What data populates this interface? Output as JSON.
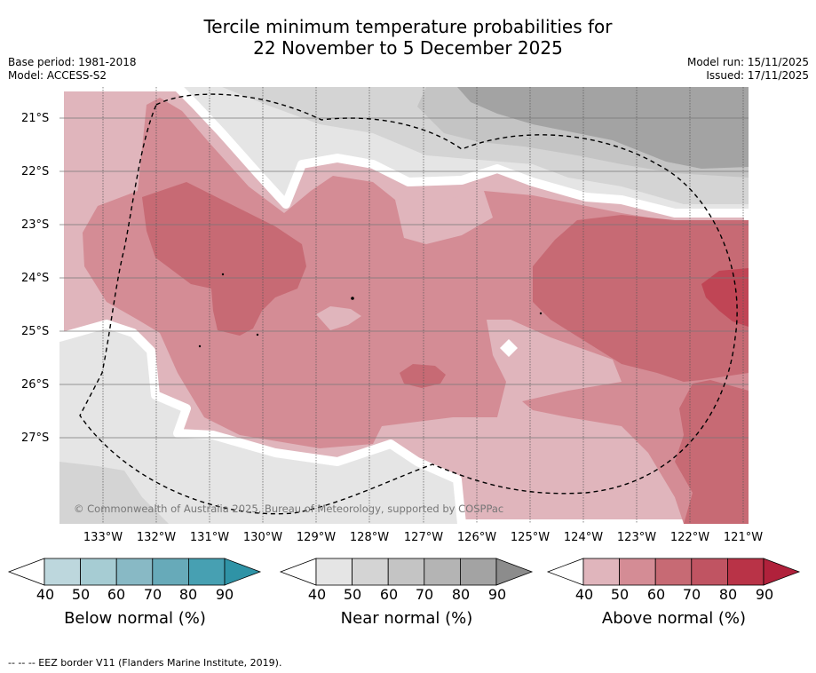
{
  "title_line1": "Tercile minimum temperature probabilities for",
  "title_line2": "22 November to 5 December 2025",
  "base_period": "Base period: 1981-2018",
  "model": "Model: ACCESS-S2",
  "model_run": "Model run: 15/11/2025",
  "issued": "Issued: 17/11/2025",
  "copyright": "© Commonwealth of Australia 2025, Bureau of Meteorology, supported by COSPPac",
  "lat_labels": [
    "21°S",
    "22°S",
    "23°S",
    "24°S",
    "25°S",
    "26°S",
    "27°S"
  ],
  "lon_labels": [
    "133°W",
    "132°W",
    "131°W",
    "130°W",
    "129°W",
    "128°W",
    "127°W",
    "126°W",
    "125°W",
    "124°W",
    "123°W",
    "122°W",
    "121°W"
  ],
  "colorbars": [
    {
      "title": "Below normal (%)",
      "ticks": [
        "40",
        "50",
        "60",
        "70",
        "80",
        "90"
      ],
      "colors": [
        "#ffffff",
        "#bdd7dd",
        "#a6ccd3",
        "#88b9c5",
        "#67aab9",
        "#47a0b2",
        "#2f93a6"
      ]
    },
    {
      "title": "Near normal (%)",
      "ticks": [
        "40",
        "50",
        "60",
        "70",
        "80",
        "90"
      ],
      "colors": [
        "#ffffff",
        "#e5e5e5",
        "#d4d4d4",
        "#c4c4c4",
        "#b4b4b4",
        "#a3a3a3",
        "#8c8c8c"
      ]
    },
    {
      "title": "Above normal (%)",
      "ticks": [
        "40",
        "50",
        "60",
        "70",
        "80",
        "90"
      ],
      "colors": [
        "#ffffff",
        "#e0b5bc",
        "#d48c95",
        "#c76a74",
        "#c05462",
        "#b93347",
        "#b0213b"
      ]
    }
  ],
  "footnote": "--  --  -- EEZ border V11 (Flanders Marine Institute, 2019)."
}
